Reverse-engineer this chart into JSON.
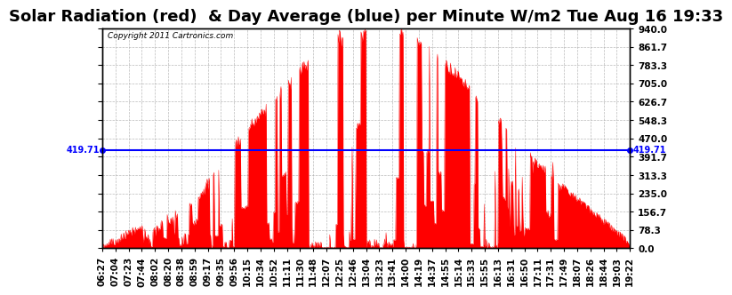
{
  "title": "Solar Radiation (red)  & Day Average (blue) per Minute W/m2 Tue Aug 16 19:33",
  "copyright_text": "Copyright 2011 Cartronics.com",
  "avg_line_value": 419.71,
  "avg_line_color": "blue",
  "fill_color": "red",
  "line_color": "red",
  "background_color": "#ffffff",
  "grid_color": "#aaaaaa",
  "ymin": 0.0,
  "ymax": 940.0,
  "yticks": [
    0.0,
    78.3,
    156.7,
    235.0,
    313.3,
    391.7,
    470.0,
    548.3,
    626.7,
    705.0,
    783.3,
    861.7,
    940.0
  ],
  "ytick_labels": [
    "0.0",
    "78.3",
    "156.7",
    "235.0",
    "313.3",
    "391.7",
    "470.0",
    "548.3",
    "626.7",
    "705.0",
    "783.3",
    "861.7",
    "940.0"
  ],
  "xtick_labels": [
    "06:27",
    "07:04",
    "07:23",
    "07:44",
    "08:02",
    "08:20",
    "08:38",
    "08:59",
    "09:17",
    "09:35",
    "09:56",
    "10:15",
    "10:34",
    "10:52",
    "11:11",
    "11:30",
    "11:48",
    "12:07",
    "12:25",
    "12:46",
    "13:04",
    "13:23",
    "13:41",
    "14:00",
    "14:19",
    "14:37",
    "14:55",
    "15:14",
    "15:33",
    "15:55",
    "16:13",
    "16:31",
    "16:50",
    "17:11",
    "17:31",
    "17:49",
    "18:07",
    "18:26",
    "18:44",
    "19:03",
    "19:22"
  ],
  "title_fontsize": 13,
  "tick_fontsize": 7.5,
  "avg_label": "419.71",
  "n_points": 780
}
